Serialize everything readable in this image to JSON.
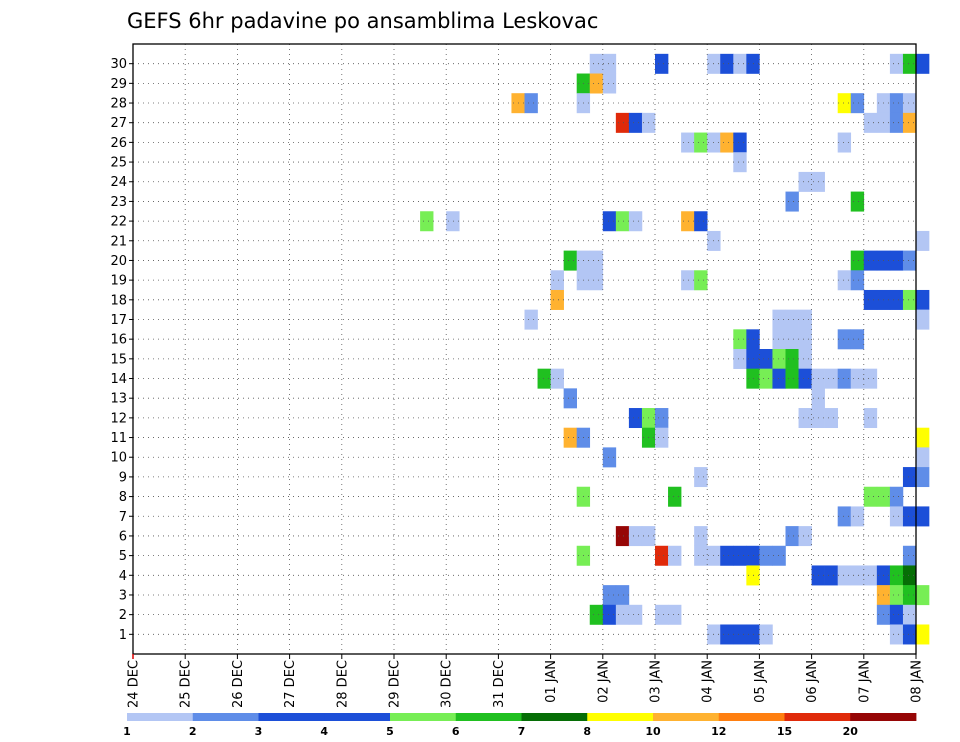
{
  "chart_data": {
    "type": "heatmap",
    "title": "GEFS 6hr padavine po ansamblima Leskovac",
    "xlabel": "",
    "ylabel": "",
    "x_tick_labels": [
      "24 DEC",
      "25 DEC",
      "26 DEC",
      "27 DEC",
      "28 DEC",
      "29 DEC",
      "30 DEC",
      "31 DEC",
      "01 JAN",
      "02 JAN",
      "03 JAN",
      "04 JAN",
      "05 JAN",
      "06 JAN",
      "07 JAN",
      "08 JAN"
    ],
    "y_tick_labels": [
      "1",
      "2",
      "3",
      "4",
      "5",
      "6",
      "7",
      "8",
      "9",
      "10",
      "11",
      "12",
      "13",
      "14",
      "15",
      "16",
      "17",
      "18",
      "19",
      "20",
      "21",
      "22",
      "23",
      "24",
      "25",
      "26",
      "27",
      "28",
      "29",
      "30"
    ],
    "y_range": [
      0,
      30
    ],
    "time_steps_per_day": 4,
    "colorbar": {
      "labels": [
        "1",
        "2",
        "3",
        "4",
        "5",
        "6",
        "7",
        "8",
        "10",
        "12",
        "15",
        "20"
      ],
      "colors": [
        "#b3c6f4",
        "#5f8de8",
        "#1c4fd8",
        "#1c4fd8",
        "#77ee55",
        "#20c020",
        "#066e06",
        "#ffff00",
        "#ffb230",
        "#ff7f10",
        "#e02a0a",
        "#960606"
      ]
    },
    "grid": true,
    "cells": [
      [
        30,
        35,
        1
      ],
      [
        30,
        36,
        1
      ],
      [
        30,
        40,
        3
      ],
      [
        30,
        44,
        1
      ],
      [
        30,
        45,
        3
      ],
      [
        30,
        46,
        1
      ],
      [
        30,
        47,
        3
      ],
      [
        30,
        58,
        1
      ],
      [
        30,
        59,
        6
      ],
      [
        30,
        60,
        3
      ],
      [
        29,
        34,
        6
      ],
      [
        29,
        35,
        10
      ],
      [
        29,
        36,
        1
      ],
      [
        28,
        29,
        10
      ],
      [
        28,
        30,
        2
      ],
      [
        28,
        34,
        1
      ],
      [
        28,
        54,
        8
      ],
      [
        28,
        55,
        2
      ],
      [
        28,
        57,
        1
      ],
      [
        28,
        58,
        2
      ],
      [
        28,
        59,
        1
      ],
      [
        27,
        37,
        15
      ],
      [
        27,
        38,
        3
      ],
      [
        27,
        39,
        1
      ],
      [
        27,
        56,
        1
      ],
      [
        27,
        57,
        1
      ],
      [
        27,
        58,
        2
      ],
      [
        27,
        59,
        10
      ],
      [
        26,
        42,
        1
      ],
      [
        26,
        43,
        5
      ],
      [
        26,
        44,
        1
      ],
      [
        26,
        45,
        10
      ],
      [
        26,
        46,
        3
      ],
      [
        26,
        54,
        1
      ],
      [
        25,
        46,
        1
      ],
      [
        24,
        51,
        1
      ],
      [
        24,
        52,
        1
      ],
      [
        23,
        50,
        2
      ],
      [
        23,
        55,
        6
      ],
      [
        22,
        22,
        5
      ],
      [
        22,
        24,
        1
      ],
      [
        22,
        36,
        3
      ],
      [
        22,
        37,
        5
      ],
      [
        22,
        38,
        1
      ],
      [
        22,
        42,
        10
      ],
      [
        22,
        43,
        3
      ],
      [
        21,
        44,
        1
      ],
      [
        21,
        60,
        1
      ],
      [
        20,
        33,
        6
      ],
      [
        20,
        34,
        1
      ],
      [
        20,
        35,
        1
      ],
      [
        20,
        55,
        6
      ],
      [
        20,
        56,
        3
      ],
      [
        20,
        57,
        3
      ],
      [
        20,
        58,
        3
      ],
      [
        20,
        59,
        2
      ],
      [
        19,
        32,
        1
      ],
      [
        19,
        34,
        1
      ],
      [
        19,
        35,
        1
      ],
      [
        19,
        42,
        1
      ],
      [
        19,
        43,
        5
      ],
      [
        19,
        54,
        1
      ],
      [
        19,
        55,
        2
      ],
      [
        18,
        32,
        10
      ],
      [
        18,
        56,
        3
      ],
      [
        18,
        57,
        3
      ],
      [
        18,
        58,
        3
      ],
      [
        18,
        59,
        5
      ],
      [
        18,
        60,
        3
      ],
      [
        17,
        30,
        1
      ],
      [
        17,
        49,
        1
      ],
      [
        17,
        50,
        1
      ],
      [
        17,
        51,
        1
      ],
      [
        17,
        60,
        1
      ],
      [
        16,
        46,
        5
      ],
      [
        16,
        47,
        3
      ],
      [
        16,
        49,
        1
      ],
      [
        16,
        50,
        1
      ],
      [
        16,
        51,
        1
      ],
      [
        16,
        54,
        2
      ],
      [
        16,
        55,
        2
      ],
      [
        15,
        46,
        1
      ],
      [
        15,
        47,
        3
      ],
      [
        15,
        48,
        3
      ],
      [
        15,
        49,
        5
      ],
      [
        15,
        50,
        6
      ],
      [
        15,
        51,
        1
      ],
      [
        14,
        31,
        6
      ],
      [
        14,
        32,
        1
      ],
      [
        14,
        47,
        6
      ],
      [
        14,
        48,
        5
      ],
      [
        14,
        49,
        3
      ],
      [
        14,
        50,
        6
      ],
      [
        14,
        51,
        3
      ],
      [
        14,
        52,
        1
      ],
      [
        14,
        53,
        1
      ],
      [
        14,
        54,
        2
      ],
      [
        14,
        55,
        1
      ],
      [
        14,
        56,
        1
      ],
      [
        13,
        33,
        2
      ],
      [
        13,
        52,
        1
      ],
      [
        12,
        38,
        3
      ],
      [
        12,
        39,
        5
      ],
      [
        12,
        40,
        2
      ],
      [
        12,
        51,
        1
      ],
      [
        12,
        52,
        1
      ],
      [
        12,
        53,
        1
      ],
      [
        12,
        56,
        1
      ],
      [
        11,
        33,
        10
      ],
      [
        11,
        34,
        2
      ],
      [
        11,
        39,
        6
      ],
      [
        11,
        40,
        1
      ],
      [
        11,
        60,
        8
      ],
      [
        10,
        36,
        2
      ],
      [
        10,
        60,
        1
      ],
      [
        9,
        43,
        1
      ],
      [
        9,
        59,
        3
      ],
      [
        9,
        60,
        2
      ],
      [
        8,
        34,
        5
      ],
      [
        8,
        41,
        6
      ],
      [
        8,
        56,
        5
      ],
      [
        8,
        57,
        5
      ],
      [
        8,
        58,
        2
      ],
      [
        7,
        54,
        2
      ],
      [
        7,
        55,
        1
      ],
      [
        7,
        58,
        1
      ],
      [
        7,
        59,
        3
      ],
      [
        7,
        60,
        3
      ],
      [
        6,
        37,
        20
      ],
      [
        6,
        38,
        1
      ],
      [
        6,
        39,
        1
      ],
      [
        6,
        43,
        1
      ],
      [
        6,
        50,
        2
      ],
      [
        6,
        51,
        1
      ],
      [
        5,
        34,
        5
      ],
      [
        5,
        40,
        15
      ],
      [
        5,
        41,
        1
      ],
      [
        5,
        43,
        1
      ],
      [
        5,
        44,
        1
      ],
      [
        5,
        45,
        3
      ],
      [
        5,
        46,
        3
      ],
      [
        5,
        47,
        3
      ],
      [
        5,
        48,
        2
      ],
      [
        5,
        49,
        2
      ],
      [
        5,
        59,
        2
      ],
      [
        4,
        47,
        8
      ],
      [
        4,
        52,
        3
      ],
      [
        4,
        53,
        3
      ],
      [
        4,
        54,
        1
      ],
      [
        4,
        55,
        1
      ],
      [
        4,
        56,
        1
      ],
      [
        4,
        57,
        3
      ],
      [
        4,
        58,
        6
      ],
      [
        4,
        59,
        7
      ],
      [
        3,
        36,
        2
      ],
      [
        3,
        37,
        2
      ],
      [
        3,
        57,
        10
      ],
      [
        3,
        58,
        5
      ],
      [
        3,
        59,
        6
      ],
      [
        3,
        60,
        5
      ],
      [
        2,
        35,
        6
      ],
      [
        2,
        36,
        3
      ],
      [
        2,
        37,
        1
      ],
      [
        2,
        38,
        1
      ],
      [
        2,
        40,
        1
      ],
      [
        2,
        41,
        1
      ],
      [
        2,
        57,
        2
      ],
      [
        2,
        58,
        3
      ],
      [
        2,
        59,
        1
      ],
      [
        1,
        44,
        1
      ],
      [
        1,
        45,
        3
      ],
      [
        1,
        46,
        3
      ],
      [
        1,
        47,
        3
      ],
      [
        1,
        48,
        1
      ],
      [
        1,
        58,
        1
      ],
      [
        1,
        59,
        3
      ],
      [
        1,
        60,
        8
      ]
    ]
  }
}
